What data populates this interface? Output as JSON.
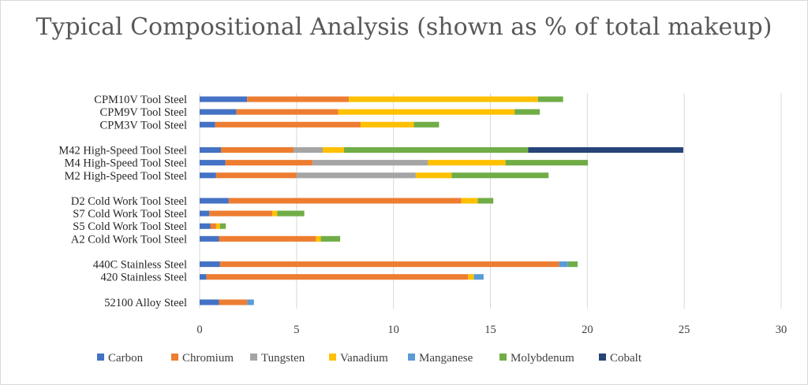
{
  "chart_data": {
    "type": "bar",
    "orientation": "horizontal",
    "stacked": true,
    "title": "Typical Compositional Analysis (shown as % of total makeup)",
    "xlabel": "",
    "ylabel": "",
    "xlim": [
      0,
      30
    ],
    "xticks": [
      0,
      5,
      10,
      15,
      20,
      25,
      30
    ],
    "grid": true,
    "legend_position": "bottom",
    "categories": [
      "CPM10V Tool Steel",
      "CPM9V Tool Steel",
      "CPM3V Tool Steel",
      "",
      "M42 High-Speed Tool Steel",
      "M4 High-Speed Tool Steel",
      "M2 High-Speed Tool Steel",
      "",
      "D2 Cold Work Tool Steel",
      "S7 Cold Work Tool Steel",
      "S5 Cold Work Tool Steel",
      "A2 Cold Work Tool Steel",
      "",
      "440C Stainless Steel",
      "420 Stainless Steel",
      "",
      "52100 Alloy Steel"
    ],
    "series": [
      {
        "name": "Carbon",
        "color": "#4472C4",
        "values": [
          2.45,
          1.9,
          0.8,
          0,
          1.1,
          1.33,
          0.85,
          0,
          1.5,
          0.5,
          0.55,
          1.0,
          0,
          1.05,
          0.35,
          0,
          1.0
        ]
      },
      {
        "name": "Chromium",
        "color": "#ED7D31",
        "values": [
          5.25,
          5.25,
          7.5,
          0,
          3.75,
          4.5,
          4.15,
          0,
          12.0,
          3.25,
          0.3,
          5.0,
          0,
          17.5,
          13.5,
          0,
          1.45
        ]
      },
      {
        "name": "Tungsten",
        "color": "#A5A5A5",
        "values": [
          0,
          0,
          0,
          0,
          1.5,
          5.95,
          6.15,
          0,
          0,
          0,
          0,
          0,
          0,
          0,
          0,
          0,
          0
        ]
      },
      {
        "name": "Vanadium",
        "color": "#FFC000",
        "values": [
          9.75,
          9.1,
          2.75,
          0,
          1.1,
          4.0,
          1.85,
          0,
          0.85,
          0.25,
          0.2,
          0.25,
          0,
          0,
          0.3,
          0,
          0
        ]
      },
      {
        "name": "Manganese",
        "color": "#5B9BD5",
        "values": [
          0,
          0,
          0,
          0,
          0,
          0,
          0,
          0,
          0,
          0,
          0,
          0,
          0,
          0.45,
          0.5,
          0,
          0.35
        ]
      },
      {
        "name": "Molybdenum",
        "color": "#70AD47",
        "values": [
          1.3,
          1.3,
          1.3,
          0,
          9.5,
          4.25,
          5.0,
          0,
          0.8,
          1.4,
          0.3,
          1.0,
          0,
          0.5,
          0,
          0,
          0
        ]
      },
      {
        "name": "Cobalt",
        "color": "#264478",
        "values": [
          0,
          0,
          0,
          0,
          8.0,
          0,
          0,
          0,
          0,
          0,
          0,
          0,
          0,
          0,
          0,
          0,
          0
        ]
      }
    ]
  }
}
